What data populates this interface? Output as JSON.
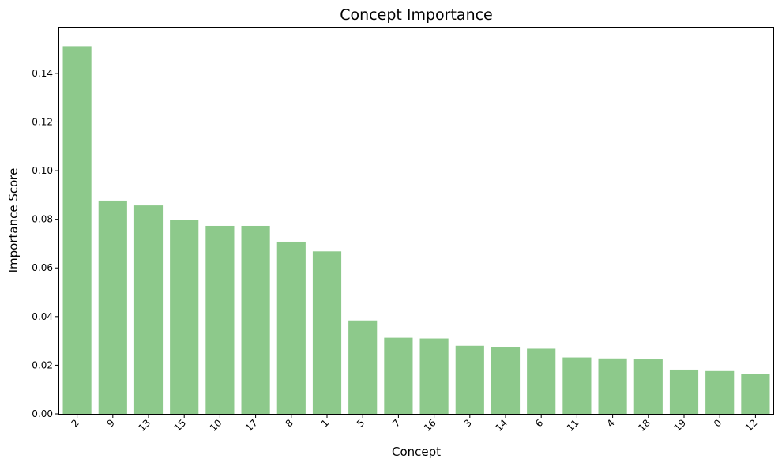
{
  "chart_data": {
    "type": "bar",
    "title": "Concept Importance",
    "xlabel": "Concept",
    "ylabel": "Importance Score",
    "categories": [
      "2",
      "9",
      "13",
      "15",
      "10",
      "17",
      "8",
      "1",
      "5",
      "7",
      "16",
      "3",
      "14",
      "6",
      "11",
      "4",
      "18",
      "19",
      "0",
      "12"
    ],
    "values": [
      0.1512,
      0.0877,
      0.0857,
      0.0797,
      0.0773,
      0.0773,
      0.0708,
      0.0668,
      0.0384,
      0.0313,
      0.031,
      0.028,
      0.0276,
      0.0268,
      0.0232,
      0.0228,
      0.0224,
      0.0182,
      0.0176,
      0.0164
    ],
    "ylim": [
      0,
      0.1588
    ],
    "yticks": [
      0.0,
      0.02,
      0.04,
      0.06,
      0.08,
      0.1,
      0.12,
      0.14
    ],
    "ytick_labels": [
      "0.00",
      "0.02",
      "0.04",
      "0.06",
      "0.08",
      "0.10",
      "0.12",
      "0.14"
    ],
    "bar_color": "#8dc98b",
    "grid": false,
    "legend": "none"
  }
}
